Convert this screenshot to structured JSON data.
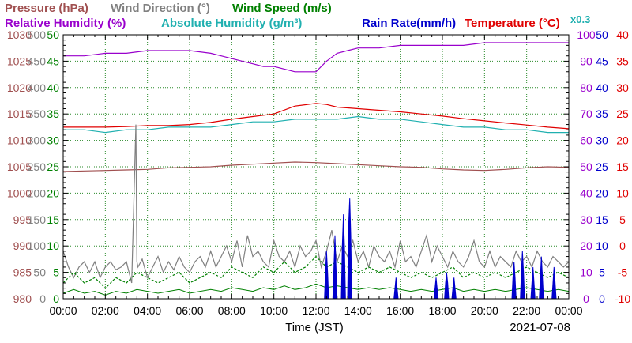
{
  "chart_data": {
    "type": "line",
    "date": "2021-07-08",
    "xlabel": "Time (JST)",
    "x_ticks": [
      "00:00",
      "02:00",
      "04:00",
      "06:00",
      "08:00",
      "10:00",
      "12:00",
      "14:00",
      "16:00",
      "18:00",
      "20:00",
      "22:00",
      "00:00"
    ],
    "grid": true,
    "legend_position": "top",
    "axes": [
      {
        "id": "pressure",
        "ticks": [
          "980",
          "985",
          "990",
          "995",
          "1000",
          "1005",
          "1010",
          "1015",
          "1020",
          "1025",
          "1030"
        ],
        "ylim": [
          980,
          1030
        ],
        "color": "#a05050",
        "side": "left"
      },
      {
        "id": "wind_dir",
        "ticks": [
          "0",
          "50",
          "100",
          "150",
          "200",
          "250",
          "300",
          "350",
          "400",
          "450",
          "500"
        ],
        "ylim": [
          0,
          500
        ],
        "color": "#808080",
        "side": "left"
      },
      {
        "id": "wind_speed",
        "ticks": [
          "0",
          "5",
          "10",
          "15",
          "20",
          "25",
          "30",
          "35",
          "40",
          "45",
          "50"
        ],
        "ylim": [
          0,
          50
        ],
        "color": "#008000",
        "side": "left"
      },
      {
        "id": "humidity",
        "ticks": [
          "0",
          "10",
          "20",
          "30",
          "40",
          "50",
          "60",
          "70",
          "80",
          "90",
          "100"
        ],
        "ylim": [
          0,
          100
        ],
        "color": "#9900cc",
        "side": "right"
      },
      {
        "id": "rain",
        "ticks": [
          "0",
          "5",
          "10",
          "15",
          "20",
          "25",
          "30",
          "35",
          "40",
          "45",
          "50"
        ],
        "ylim": [
          0,
          50
        ],
        "color": "#0000cc",
        "side": "right"
      },
      {
        "id": "temp",
        "ticks": [
          "-10",
          "-5",
          "0",
          "5",
          "10",
          "15",
          "20",
          "25",
          "30",
          "35",
          "40"
        ],
        "ylim": [
          -10,
          40
        ],
        "color": "#e00000",
        "side": "right"
      }
    ],
    "legend": [
      {
        "label": "Pressure (hPa)",
        "color": "#a05050"
      },
      {
        "label": "Wind Direction (°)",
        "color": "#808080"
      },
      {
        "label": "Wind Speed (m/s)",
        "color": "#008000"
      },
      {
        "label": "Relative Humidity (%)",
        "color": "#9900cc"
      },
      {
        "label": "Absolute Humidity (g/m³)",
        "color": "#20b0b0"
      },
      {
        "label": "Rain Rate(mm/h)",
        "color": "#0000cc"
      },
      {
        "label": "Temperature (°C)",
        "color": "#e00000"
      }
    ],
    "abs_humidity_scale_note": "x0.3",
    "series": [
      {
        "name": "Relative Humidity (%)",
        "axis": "humidity",
        "color": "#9900cc",
        "x": [
          0,
          1,
          2,
          3,
          4,
          5,
          6,
          7,
          7.5,
          8,
          8.5,
          9,
          9.5,
          10,
          10.5,
          11,
          11.5,
          12,
          12.5,
          13,
          13.5,
          14,
          15,
          16,
          17,
          18,
          19,
          20,
          21,
          22,
          23,
          24
        ],
        "values": [
          92,
          92,
          93,
          93,
          94,
          94,
          94,
          93,
          92,
          91,
          90,
          89,
          88,
          88,
          87,
          86,
          86,
          86,
          90,
          93,
          94,
          95,
          95,
          96,
          96,
          96,
          96,
          97,
          97,
          97,
          97,
          97
        ]
      },
      {
        "name": "Temperature (°C)",
        "axis": "temp",
        "color": "#e00000",
        "x": [
          0,
          1,
          2,
          3,
          4,
          5,
          6,
          7,
          8,
          9,
          10,
          11,
          12,
          12.5,
          13,
          14,
          15,
          16,
          17,
          18,
          19,
          20,
          21,
          22,
          23,
          24
        ],
        "values": [
          22.5,
          22.5,
          22.5,
          22.6,
          22.8,
          22.8,
          23.0,
          23.4,
          24.0,
          24.5,
          25.0,
          26.5,
          27.0,
          26.8,
          26.3,
          26.0,
          25.7,
          25.4,
          25.0,
          24.6,
          24.1,
          23.7,
          23.3,
          22.9,
          22.5,
          22.2
        ]
      },
      {
        "name": "Absolute Humidity (g/m³)",
        "axis": "humidity",
        "color": "#20b0b0",
        "x": [
          0,
          1,
          2,
          3,
          4,
          5,
          6,
          7,
          8,
          9,
          10,
          11,
          12,
          13,
          14,
          15,
          16,
          17,
          18,
          19,
          20,
          21,
          22,
          23,
          24
        ],
        "values": [
          64,
          64,
          63,
          64,
          64,
          65,
          65,
          65,
          66,
          67,
          67,
          68,
          68,
          68,
          69,
          68,
          68,
          67,
          66,
          65,
          65,
          64,
          64,
          63,
          63
        ]
      },
      {
        "name": "Pressure (hPa)",
        "axis": "pressure",
        "color": "#a05050",
        "x": [
          0,
          1,
          2,
          3,
          4,
          5,
          6,
          7,
          8,
          9,
          10,
          11,
          12,
          13,
          14,
          15,
          16,
          17,
          18,
          19,
          20,
          21,
          22,
          23,
          24
        ],
        "values": [
          1004.1,
          1004.2,
          1004.3,
          1004.4,
          1004.5,
          1004.8,
          1004.9,
          1005.0,
          1005.3,
          1005.5,
          1005.7,
          1005.9,
          1005.8,
          1005.6,
          1005.4,
          1005.2,
          1005.0,
          1004.9,
          1004.6,
          1004.4,
          1004.3,
          1004.5,
          1004.8,
          1005.0,
          1004.9
        ]
      },
      {
        "name": "Wind Direction (°)",
        "axis": "wind_dir",
        "color": "#808080",
        "x": [
          0,
          0.25,
          0.5,
          0.75,
          1,
          1.25,
          1.5,
          1.75,
          2,
          2.25,
          2.5,
          2.75,
          3,
          3.25,
          3.45,
          3.5,
          3.55,
          3.75,
          4,
          4.25,
          4.5,
          4.75,
          5,
          5.25,
          5.5,
          5.75,
          6,
          6.25,
          6.5,
          6.75,
          7,
          7.25,
          7.5,
          7.75,
          8,
          8.25,
          8.5,
          8.75,
          9,
          9.25,
          9.5,
          9.75,
          10,
          10.25,
          10.5,
          10.75,
          11,
          11.25,
          11.5,
          11.75,
          12,
          12.25,
          12.5,
          12.75,
          13,
          13.25,
          13.5,
          13.75,
          14,
          14.25,
          14.5,
          14.75,
          15,
          15.25,
          15.5,
          15.75,
          16,
          16.25,
          16.5,
          16.75,
          17,
          17.25,
          17.5,
          17.75,
          18,
          18.25,
          18.5,
          18.75,
          19,
          19.25,
          19.5,
          19.75,
          20,
          20.25,
          20.5,
          20.75,
          21,
          21.25,
          21.5,
          21.75,
          22,
          22.25,
          22.5,
          22.75,
          23,
          23.25,
          23.5,
          23.75,
          24
        ],
        "values": [
          90,
          60,
          40,
          60,
          70,
          50,
          70,
          40,
          60,
          70,
          55,
          60,
          70,
          30,
          330,
          70,
          60,
          75,
          40,
          60,
          80,
          50,
          70,
          55,
          80,
          60,
          50,
          70,
          80,
          60,
          90,
          60,
          80,
          100,
          70,
          110,
          60,
          120,
          80,
          90,
          70,
          60,
          110,
          80,
          70,
          90,
          60,
          100,
          80,
          90,
          110,
          60,
          90,
          130,
          70,
          100,
          80,
          110,
          70,
          90,
          60,
          100,
          80,
          70,
          90,
          60,
          110,
          70,
          80,
          60,
          90,
          120,
          70,
          100,
          80,
          60,
          90,
          70,
          60,
          80,
          110,
          70,
          60,
          90,
          60,
          80,
          70,
          60,
          90,
          70,
          80,
          60,
          90,
          70,
          60,
          80,
          70,
          60,
          70
        ]
      },
      {
        "name": "Wind Speed (m/s)",
        "axis": "wind_speed",
        "color": "#008000",
        "x": [
          0,
          0.5,
          1,
          1.5,
          2,
          2.5,
          3,
          3.5,
          4,
          4.5,
          5,
          5.5,
          6,
          6.5,
          7,
          7.5,
          8,
          8.5,
          9,
          9.5,
          10,
          10.5,
          11,
          11.5,
          12,
          12.5,
          13,
          13.5,
          14,
          14.5,
          15,
          15.5,
          16,
          16.5,
          17,
          17.5,
          18,
          18.5,
          19,
          19.5,
          20,
          20.5,
          21,
          21.5,
          22,
          22.5,
          23,
          23.5,
          24
        ],
        "values": [
          3,
          5,
          3,
          4,
          2,
          4,
          3,
          5,
          4,
          3,
          4,
          5,
          3,
          4,
          5,
          4,
          6,
          5,
          4,
          6,
          5,
          7,
          5,
          6,
          8,
          6,
          7,
          6,
          5,
          6,
          5,
          6,
          5,
          4,
          5,
          4,
          5,
          6,
          4,
          5,
          4,
          5,
          4,
          5,
          6,
          5,
          4,
          5,
          4
        ]
      },
      {
        "name": "Rain Rate(mm/h)",
        "axis": "rain",
        "color": "#0000cc",
        "x": [
          12.4,
          12.45,
          12.5,
          12.55,
          12.6,
          12.8,
          12.85,
          12.9,
          12.95,
          13.0,
          13.2,
          13.25,
          13.3,
          13.35,
          13.4,
          13.5,
          13.55,
          13.6,
          13.65,
          13.7,
          15.7,
          15.75,
          15.8,
          15.85,
          15.9,
          17.6,
          17.65,
          17.7,
          17.75,
          17.8,
          18.1,
          18.15,
          18.2,
          18.25,
          18.3,
          18.45,
          18.5,
          18.55,
          18.6,
          18.65,
          21.3,
          21.35,
          21.4,
          21.45,
          21.5,
          21.7,
          21.75,
          21.8,
          21.85,
          21.9,
          22.2,
          22.25,
          22.3,
          22.35,
          22.4,
          22.6,
          22.65,
          22.7,
          22.75,
          22.8,
          23.2,
          23.25,
          23.3,
          23.35,
          23.4
        ],
        "values": [
          0,
          5,
          9,
          5,
          0,
          0,
          6,
          12,
          6,
          0,
          0,
          10,
          16,
          10,
          0,
          0,
          14,
          19,
          12,
          0,
          0,
          2,
          4,
          2,
          0,
          0,
          2,
          4,
          2,
          0,
          0,
          3,
          5,
          3,
          0,
          0,
          2,
          4,
          2,
          0,
          0,
          4,
          7,
          4,
          0,
          0,
          5,
          9,
          5,
          0,
          0,
          3,
          6,
          3,
          0,
          0,
          4,
          8,
          4,
          0,
          0,
          3,
          6,
          3,
          0
        ]
      }
    ]
  }
}
